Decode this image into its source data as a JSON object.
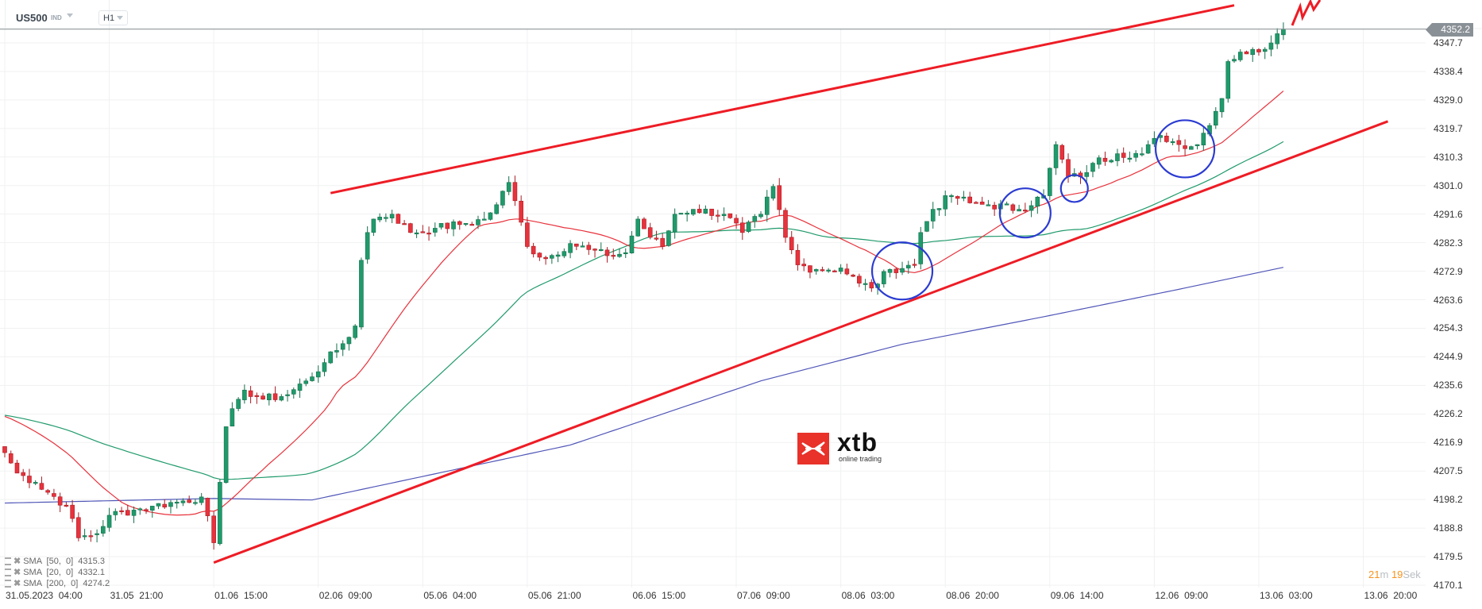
{
  "header": {
    "symbol": "US500",
    "instrument_type": "IND",
    "timeframe": "H1"
  },
  "current_price": "4352.2",
  "timer": {
    "minutes": "21",
    "minutes_unit": "m",
    "seconds": "19",
    "seconds_unit": "Sek"
  },
  "logo": {
    "name": "xtb",
    "tagline": "online trading"
  },
  "indicators": [
    {
      "label": "SMA  [50,  0]  4315.3",
      "color": "#1f9a6b"
    },
    {
      "label": "SMA  [20,  0]  4332.1",
      "color": "#e8323c"
    },
    {
      "label": "SMA  [200,  0]  4274.2",
      "color": "#5056b8"
    }
  ],
  "chart_data": {
    "type": "candlestick",
    "symbol": "US500",
    "timeframe": "H1",
    "y_ticks": [
      "4347.7",
      "4338.4",
      "4329.0",
      "4319.7",
      "4310.3",
      "4301.0",
      "4291.6",
      "4282.3",
      "4272.9",
      "4263.6",
      "4254.3",
      "4244.9",
      "4235.6",
      "4226.2",
      "4216.9",
      "4207.5",
      "4198.2",
      "4188.8",
      "4179.5",
      "4170.1"
    ],
    "ylim": [
      4170.1,
      4347.7
    ],
    "x_ticks": [
      "31.05.2023  04:00",
      "31.05  21:00",
      "01.06  15:00",
      "02.06  09:00",
      "05.06  04:00",
      "05.06  21:00",
      "06.06  15:00",
      "07.06  09:00",
      "08.06  03:00",
      "08.06  20:00",
      "09.06  14:00",
      "12.06  09:00",
      "13.06  03:00",
      "13.06  20:00"
    ],
    "candles_per_x_tick": 17,
    "close_waypoints": [
      [
        0,
        4213.5
      ],
      [
        2,
        4206.8
      ],
      [
        5,
        4203.8
      ],
      [
        10,
        4196
      ],
      [
        12,
        4185.6
      ],
      [
        15,
        4187
      ],
      [
        17,
        4193
      ],
      [
        21,
        4194.7
      ],
      [
        24,
        4196
      ],
      [
        29,
        4197.7
      ],
      [
        32,
        4199
      ],
      [
        34,
        4184
      ],
      [
        35,
        4203.8
      ],
      [
        36,
        4222
      ],
      [
        38,
        4231
      ],
      [
        39,
        4234
      ],
      [
        42,
        4231
      ],
      [
        46,
        4232.5
      ],
      [
        49,
        4237
      ],
      [
        52,
        4243
      ],
      [
        55,
        4249.2
      ],
      [
        57,
        4255
      ],
      [
        58,
        4276.5
      ],
      [
        59,
        4285.6
      ],
      [
        60,
        4290
      ],
      [
        63,
        4291.6
      ],
      [
        66,
        4285.6
      ],
      [
        70,
        4287
      ],
      [
        75,
        4288.6
      ],
      [
        78,
        4290
      ],
      [
        80,
        4294.7
      ],
      [
        82,
        4302
      ],
      [
        83,
        4296
      ],
      [
        85,
        4281
      ],
      [
        88,
        4277
      ],
      [
        92,
        4282
      ],
      [
        95,
        4280
      ],
      [
        98,
        4278
      ],
      [
        101,
        4279
      ],
      [
        103,
        4290
      ],
      [
        105,
        4284
      ],
      [
        107,
        4281
      ],
      [
        109,
        4291.6
      ],
      [
        112,
        4293.2
      ],
      [
        117,
        4291.6
      ],
      [
        120,
        4285.6
      ],
      [
        123,
        4291.6
      ],
      [
        125,
        4300.7
      ],
      [
        127,
        4284
      ],
      [
        129,
        4275
      ],
      [
        132,
        4273.5
      ],
      [
        136,
        4274
      ],
      [
        139,
        4269
      ],
      [
        141,
        4267.4
      ],
      [
        144,
        4273.5
      ],
      [
        148,
        4275
      ],
      [
        149,
        4285.6
      ],
      [
        151,
        4293.2
      ],
      [
        154,
        4297.7
      ],
      [
        157,
        4295.3
      ],
      [
        160,
        4294.7
      ],
      [
        165,
        4293.2
      ],
      [
        169,
        4297.7
      ],
      [
        171,
        4314.4
      ],
      [
        173,
        4303.8
      ],
      [
        175,
        4303.8
      ],
      [
        177,
        4308.3
      ],
      [
        181,
        4311.4
      ],
      [
        185,
        4311.4
      ],
      [
        188,
        4317.4
      ],
      [
        191,
        4314.4
      ],
      [
        194,
        4314.4
      ],
      [
        198,
        4329.5
      ],
      [
        199,
        4341.6
      ],
      [
        201,
        4344.7
      ],
      [
        204,
        4344.7
      ],
      [
        207,
        4350.7
      ],
      [
        208,
        4352.2
      ]
    ],
    "sma200_waypoints": [
      [
        0,
        4197
      ],
      [
        34,
        4198.5
      ],
      [
        50,
        4198
      ],
      [
        92,
        4216
      ],
      [
        123,
        4237
      ],
      [
        146,
        4249
      ],
      [
        169,
        4258
      ],
      [
        191,
        4267
      ],
      [
        208,
        4274.2
      ]
    ],
    "series": [
      {
        "name": "SMA 20",
        "period": 20,
        "last": 4332.1
      },
      {
        "name": "SMA 50",
        "period": 50,
        "last": 4315.3
      },
      {
        "name": "SMA 200",
        "period": 200,
        "last": 4274.2
      }
    ],
    "annotations": {
      "upper_trendline": [
        [
          53,
          4298.5
        ],
        [
          200,
          4360
        ]
      ],
      "lower_trendline": [
        [
          34,
          4177.5
        ],
        [
          225,
          4322
        ]
      ],
      "circles_at_candles": [
        [
          146,
          4273
        ],
        [
          166,
          4292
        ],
        [
          174,
          4300
        ],
        [
          192,
          4313
        ]
      ]
    },
    "colors": {
      "up": "#1f9a6b",
      "down": "#e8323c",
      "sma20": "#e8323c",
      "sma50": "#1f9a6b",
      "sma200": "#5056b8",
      "trend": "#ee1c25",
      "circle": "#2b3bd1"
    }
  }
}
